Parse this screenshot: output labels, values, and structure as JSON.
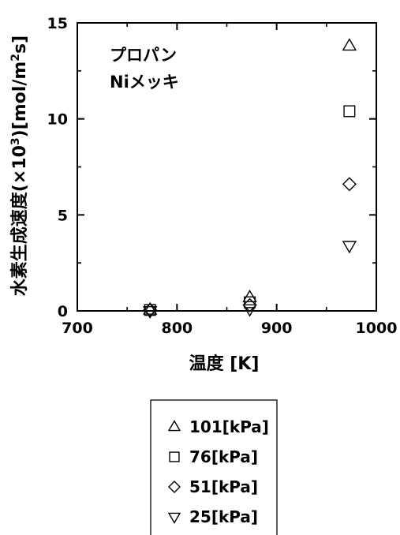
{
  "chart_data": {
    "type": "scatter",
    "title": "",
    "xlabel": "温度 [K]",
    "ylabel_parts": [
      "水素生成速度(×10",
      "3",
      ")[mol/m",
      "2",
      "s]"
    ],
    "xlim": [
      700,
      1000
    ],
    "ylim": [
      0,
      15
    ],
    "x_ticks": [
      "700",
      "800",
      "900",
      "1000"
    ],
    "y_ticks": [
      "0",
      "5",
      "10",
      "15"
    ],
    "annotations": [
      "プロパン",
      "Niメッキ"
    ],
    "legend_position": "below-plot",
    "grid": false,
    "series": [
      {
        "name": "101[kPa]",
        "marker": "triangle-up",
        "x": [
          773,
          873,
          973
        ],
        "y": [
          0.05,
          0.7,
          13.8
        ]
      },
      {
        "name": "76[kPa]",
        "marker": "square",
        "x": [
          773,
          873,
          973
        ],
        "y": [
          0.05,
          0.45,
          10.4
        ]
      },
      {
        "name": "51[kPa]",
        "marker": "diamond",
        "x": [
          773,
          873,
          973
        ],
        "y": [
          0.05,
          0.3,
          6.6
        ]
      },
      {
        "name": "25[kPa]",
        "marker": "triangle-down",
        "x": [
          773,
          873,
          973
        ],
        "y": [
          0.0,
          0.1,
          3.4
        ]
      }
    ]
  }
}
